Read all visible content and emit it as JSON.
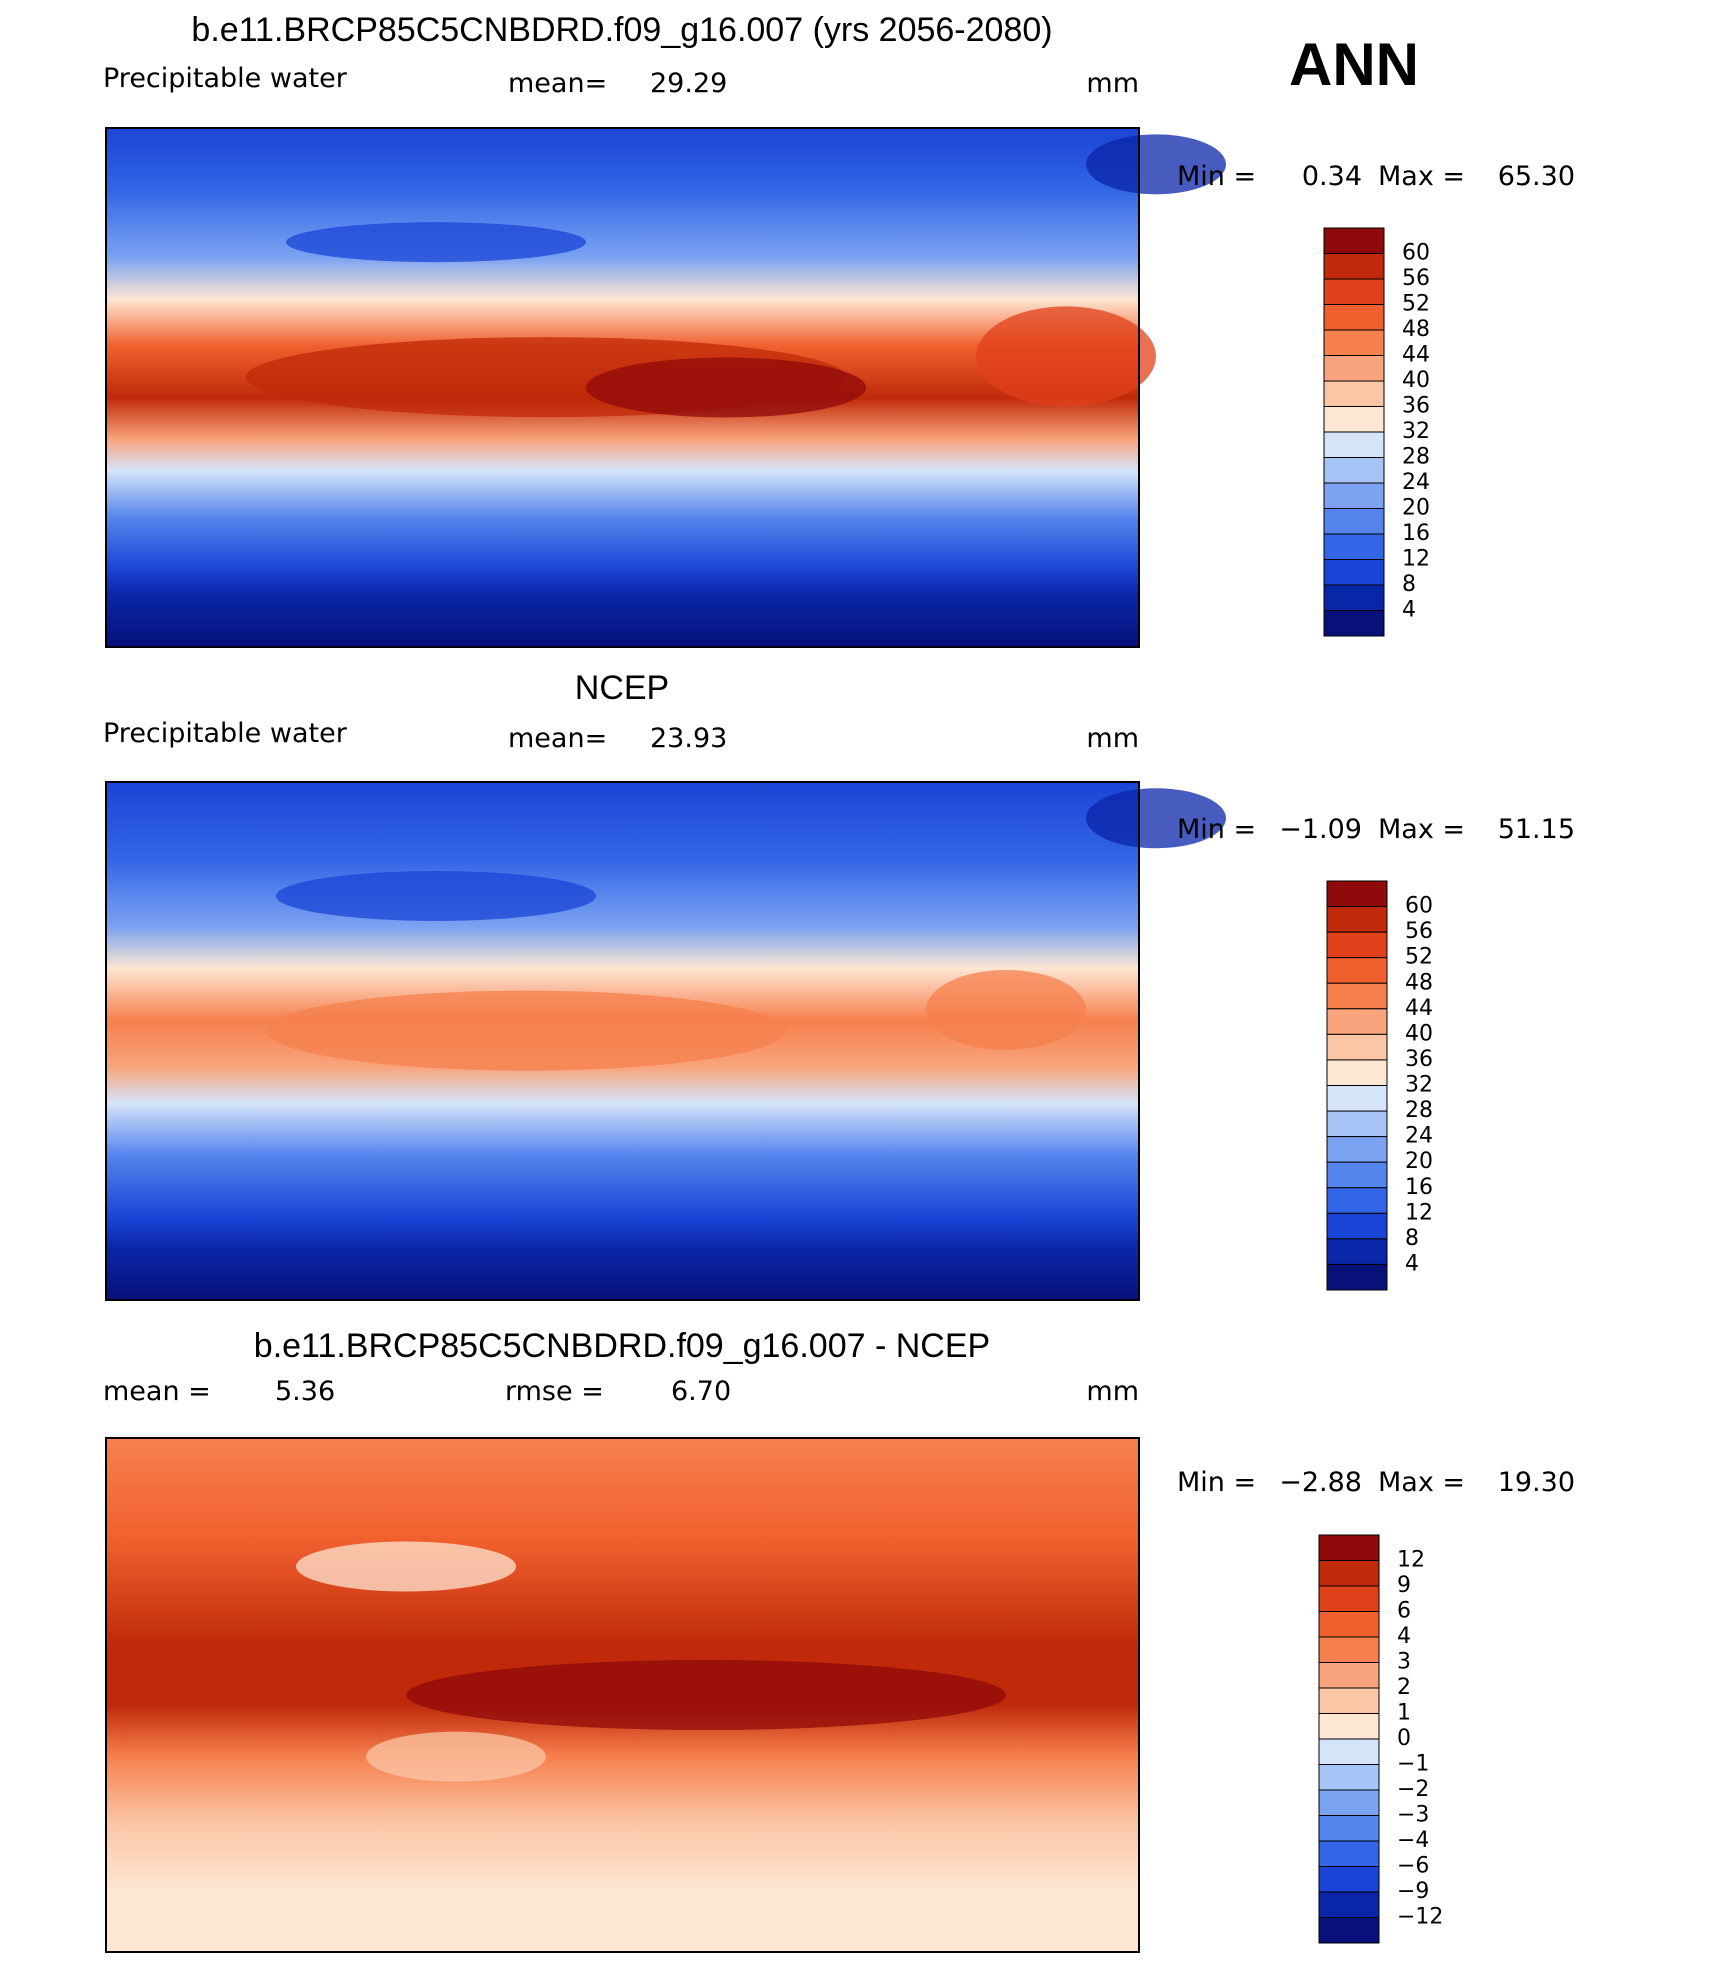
{
  "header": {
    "label": "ANN"
  },
  "panels": [
    {
      "title": "b.e11.BRCP85C5CNBDRD.f09_g16.007 (yrs 2056-2080)",
      "variable": "Precipitable water",
      "stat_label": "mean=",
      "stat_value": "29.29",
      "units": "mm",
      "min_label": "Min =",
      "min": "0.34",
      "max_label": "Max =",
      "max": "65.30",
      "colorbar": {
        "levels": [
          "60",
          "56",
          "52",
          "48",
          "44",
          "40",
          "36",
          "32",
          "28",
          "24",
          "20",
          "16",
          "12",
          "8",
          "4"
        ],
        "colors": [
          "#8f0a0a",
          "#c02a0a",
          "#e0401a",
          "#f0602e",
          "#f6804e",
          "#f9a47c",
          "#fbc6a6",
          "#fde6d2",
          "#d6e4fa",
          "#a7c4f6",
          "#7ba3f2",
          "#5585ec",
          "#3366e6",
          "#1a44d6",
          "#0a26a8",
          "#08107a"
        ]
      }
    },
    {
      "title": "NCEP",
      "variable": "Precipitable water",
      "stat_label": "mean=",
      "stat_value": "23.93",
      "units": "mm",
      "min_label": "Min =",
      "min": "−1.09",
      "max_label": "Max =",
      "max": "51.15",
      "colorbar": {
        "levels": [
          "60",
          "56",
          "52",
          "48",
          "44",
          "40",
          "36",
          "32",
          "28",
          "24",
          "20",
          "16",
          "12",
          "8",
          "4"
        ],
        "colors": [
          "#8f0a0a",
          "#c02a0a",
          "#e0401a",
          "#f0602e",
          "#f6804e",
          "#f9a47c",
          "#fbc6a6",
          "#fde6d2",
          "#d6e4fa",
          "#a7c4f6",
          "#7ba3f2",
          "#5585ec",
          "#3366e6",
          "#1a44d6",
          "#0a26a8",
          "#08107a"
        ]
      }
    },
    {
      "title": "b.e11.BRCP85C5CNBDRD.f09_g16.007 - NCEP",
      "stat_label": "mean =",
      "stat_value": "5.36",
      "stat2_label": "rmse =",
      "stat2_value": "6.70",
      "units": "mm",
      "min_label": "Min =",
      "min": "−2.88",
      "max_label": "Max =",
      "max": "19.30",
      "colorbar": {
        "levels": [
          "12",
          "9",
          "6",
          "4",
          "3",
          "2",
          "1",
          "0",
          "−1",
          "−2",
          "−3",
          "−4",
          "−6",
          "−9",
          "−12"
        ],
        "colors": [
          "#8f0a0a",
          "#c02a0a",
          "#e0401a",
          "#f0602e",
          "#f6804e",
          "#f9a47c",
          "#fbc6a6",
          "#fde6d2",
          "#d6e4fa",
          "#a7c4f6",
          "#7ba3f2",
          "#5585ec",
          "#3366e6",
          "#1a44d6",
          "#0a26a8",
          "#08107a"
        ]
      }
    }
  ]
}
